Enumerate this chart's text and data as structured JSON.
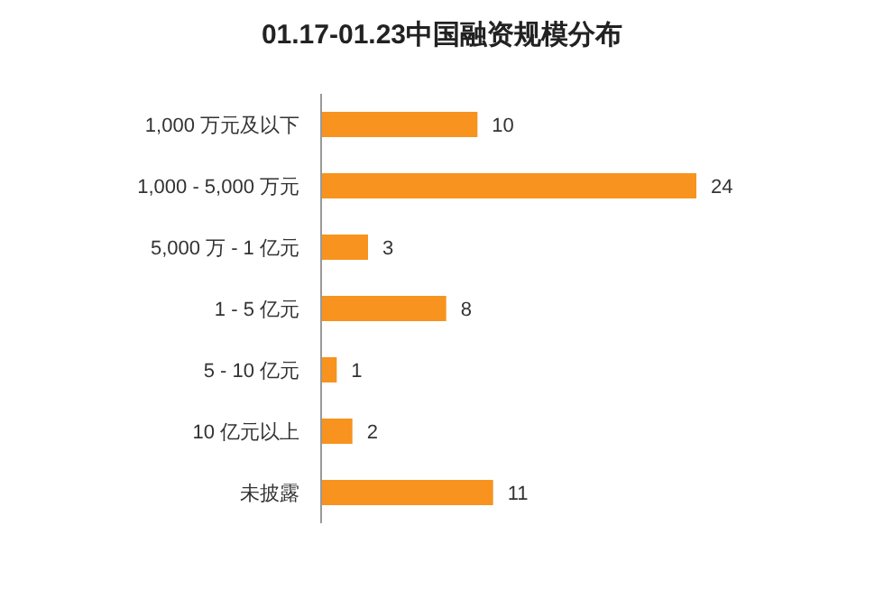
{
  "chart_data": {
    "type": "bar",
    "orientation": "horizontal",
    "title": "01.17-01.23中国融资规模分布",
    "categories": [
      "1,000 万元及以下",
      "1,000 - 5,000 万元",
      "5,000 万 - 1 亿元",
      "1 - 5 亿元",
      "5 - 10 亿元",
      "10 亿元以上",
      "未披露"
    ],
    "values": [
      10,
      24,
      3,
      8,
      1,
      2,
      11
    ],
    "color": "#f7931e",
    "data_labels": true
  }
}
